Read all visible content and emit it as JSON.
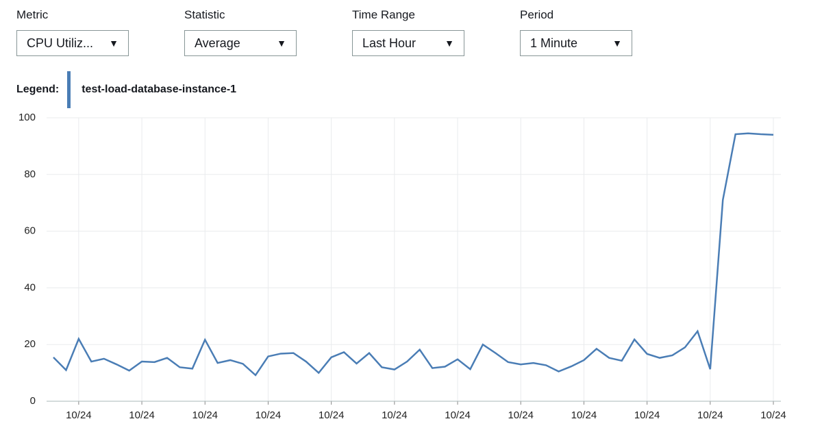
{
  "filters": [
    {
      "label": "Metric",
      "value": "CPU Utiliz..."
    },
    {
      "label": "Statistic",
      "value": "Average"
    },
    {
      "label": "Time Range",
      "value": "Last Hour"
    },
    {
      "label": "Period",
      "value": "1 Minute"
    }
  ],
  "legend_label": "Legend:",
  "chart_data": {
    "type": "line",
    "categories": [
      null,
      null,
      "10/24",
      null,
      null,
      null,
      null,
      "10/24",
      null,
      null,
      null,
      null,
      "10/24",
      null,
      null,
      null,
      null,
      "10/24",
      null,
      null,
      null,
      null,
      "10/24",
      null,
      null,
      null,
      null,
      "10/24",
      null,
      null,
      null,
      null,
      "10/24",
      null,
      null,
      null,
      null,
      "10/24",
      null,
      null,
      null,
      null,
      "10/24",
      null,
      null,
      null,
      null,
      "10/24",
      null,
      null,
      null,
      null,
      "10/24",
      null,
      null,
      null,
      null,
      "10/24"
    ],
    "series": [
      {
        "name": "test-load-database-instance-1",
        "color": "#4a7db5",
        "values": [
          15.5,
          11,
          22,
          14,
          15,
          13,
          10.8,
          14,
          13.8,
          15.3,
          12,
          11.5,
          21.7,
          13.5,
          14.5,
          13.2,
          9.2,
          15.8,
          16.8,
          17,
          14,
          10,
          15.5,
          17.3,
          13.3,
          17,
          12,
          11.2,
          14,
          18.2,
          11.7,
          12.2,
          14.8,
          11.3,
          20,
          17,
          13.8,
          13,
          13.5,
          12.7,
          10.5,
          12.3,
          14.5,
          18.5,
          15.3,
          14.3,
          21.8,
          16.7,
          15.3,
          16.2,
          19,
          24.7,
          11.3,
          71,
          94.2,
          94.5,
          94.2,
          94
        ]
      }
    ],
    "ylim": [
      0,
      100
    ],
    "yticks": [
      0,
      20,
      40,
      60,
      80,
      100
    ],
    "grid": true
  }
}
